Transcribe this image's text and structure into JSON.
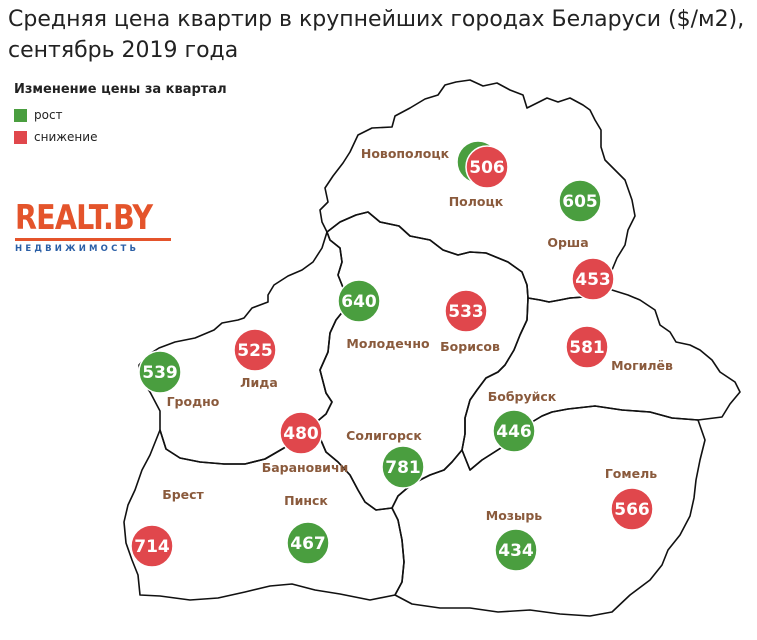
{
  "title": {
    "line1": "Средняя цена квартир в крупнейших городах Беларуси ($/м2),",
    "line2": "сентябрь 2019 года"
  },
  "legend": {
    "title": "Изменение цены за квартал",
    "items": [
      {
        "label": "рост",
        "color": "#4a9e3f"
      },
      {
        "label": "снижение",
        "color": "#e0474c"
      }
    ]
  },
  "logo": {
    "text": "REALT.BY",
    "subtitle": "НЕДВИЖИМОСТЬ"
  },
  "colors": {
    "up": "#4a9e3f",
    "down": "#e0474c",
    "label": "#8a5a3c",
    "border": "#111111",
    "land": "#ffffff"
  },
  "cities": [
    {
      "name": "Новополоцк",
      "value": null,
      "trend": "up"
    },
    {
      "name": "Полоцк",
      "value": 506,
      "trend": "down"
    },
    {
      "name": "Орша",
      "value": 605,
      "trend": "up"
    },
    {
      "name": "",
      "value": 453,
      "trend": "down"
    },
    {
      "name": "Молодечно",
      "value": 640,
      "trend": "up"
    },
    {
      "name": "Борисов",
      "value": 533,
      "trend": "down"
    },
    {
      "name": "Могилёв",
      "value": 581,
      "trend": "down"
    },
    {
      "name": "Гродно",
      "value": 539,
      "trend": "up"
    },
    {
      "name": "Лида",
      "value": 525,
      "trend": "down"
    },
    {
      "name": "Барановичи",
      "value": 480,
      "trend": "down"
    },
    {
      "name": "Бобруйск",
      "value": 446,
      "trend": "up"
    },
    {
      "name": "Солигорск",
      "value": 781,
      "trend": "up"
    },
    {
      "name": "Брест",
      "value": 714,
      "trend": "down"
    },
    {
      "name": "Пинск",
      "value": 467,
      "trend": "up"
    },
    {
      "name": "Гомель",
      "value": 566,
      "trend": "down"
    },
    {
      "name": "Мозырь",
      "value": 434,
      "trend": "up"
    }
  ]
}
